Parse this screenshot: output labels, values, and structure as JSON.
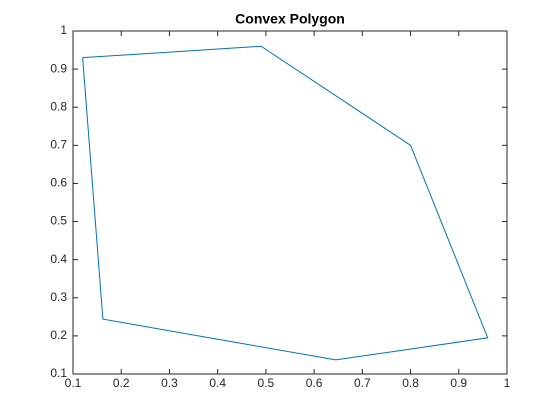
{
  "chart_data": {
    "type": "line",
    "title": "Convex Polygon",
    "x": [
      0.12,
      0.49,
      0.8,
      0.96,
      0.645,
      0.162,
      0.12
    ],
    "series": [
      {
        "color": "#0072bd",
        "values": [
          0.93,
          0.96,
          0.7,
          0.195,
          0.137,
          0.244,
          0.93
        ]
      }
    ],
    "xlim": [
      0.1,
      1
    ],
    "xticks": [
      0.1,
      0.2,
      0.3,
      0.4,
      0.5,
      0.6,
      0.7,
      0.8,
      0.9,
      1
    ],
    "ylim": [
      0.1,
      1
    ],
    "yticks": [
      0.1,
      0.2,
      0.3,
      0.4,
      0.5,
      0.6,
      0.7,
      0.8,
      0.9,
      1
    ],
    "grid": false
  }
}
